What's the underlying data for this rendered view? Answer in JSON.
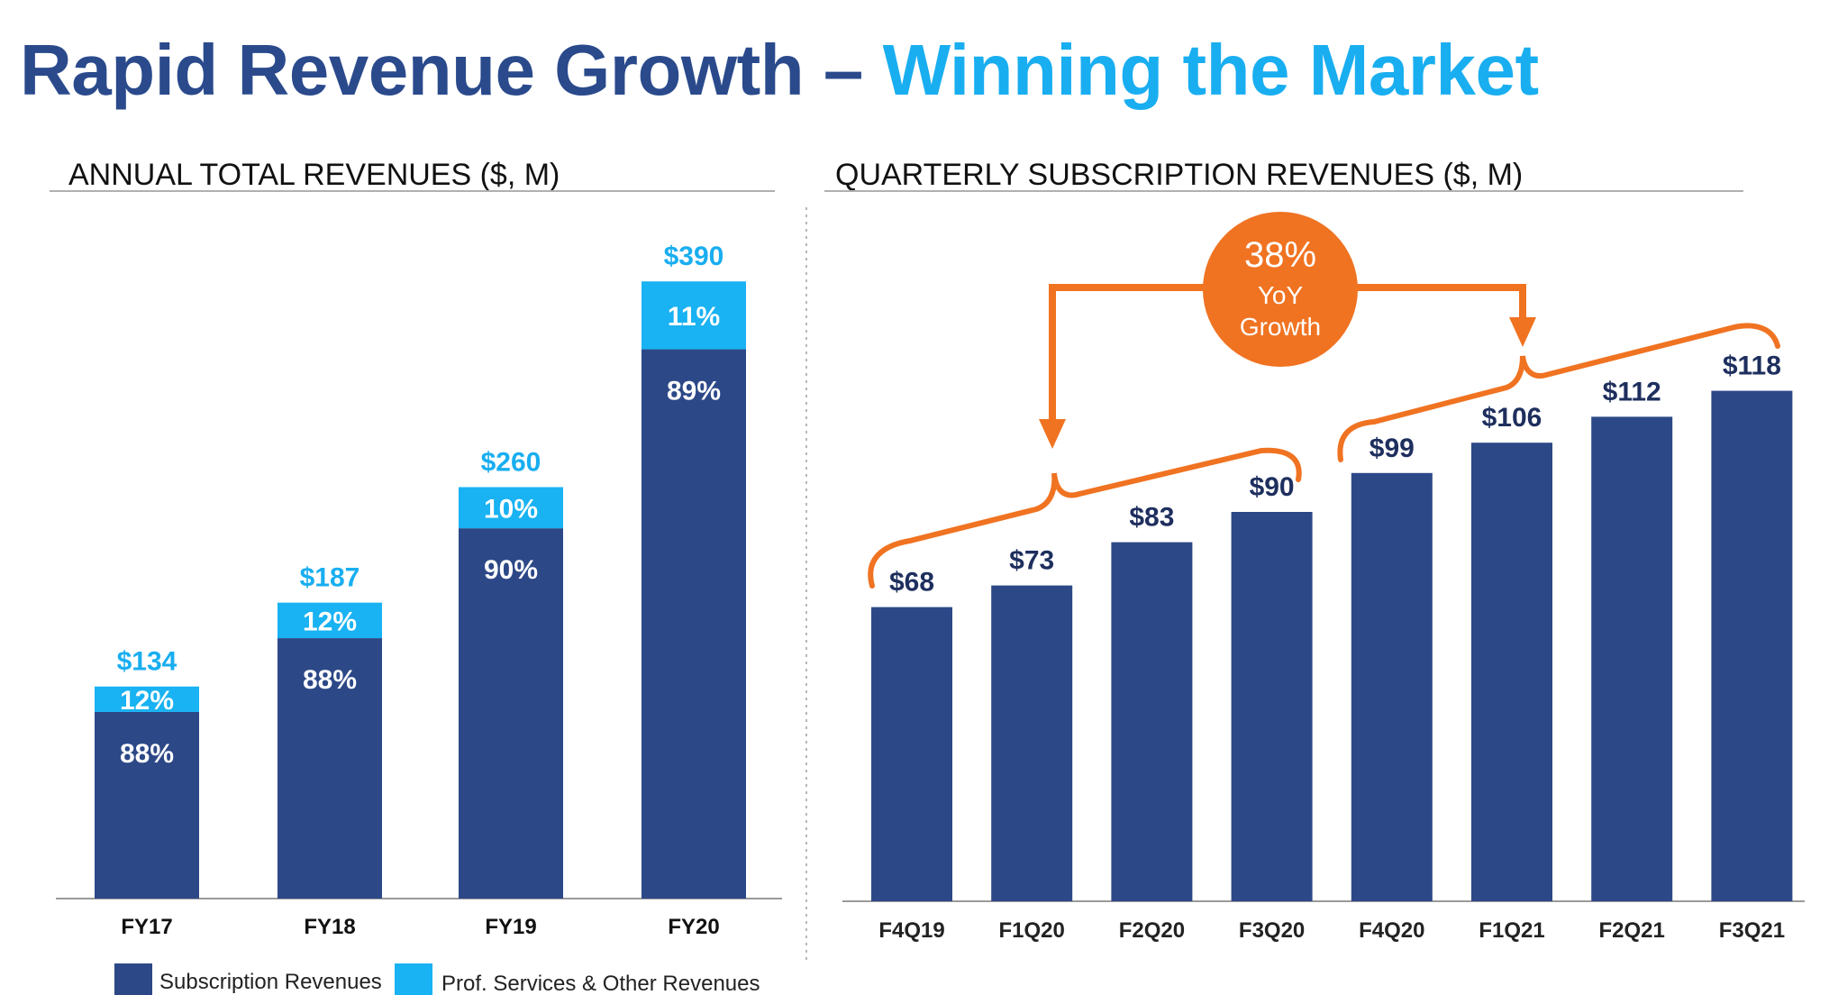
{
  "title": {
    "part1": "Rapid Revenue Growth – ",
    "part2": "Winning the Market"
  },
  "colors": {
    "title_dark": "#2a4a8c",
    "title_light": "#19aef0",
    "subscription": "#2c4887",
    "prof_services": "#19b2f2",
    "callout": "#f07322"
  },
  "chart_data": [
    {
      "type": "bar",
      "stacked": true,
      "title": "ANNUAL TOTAL REVENUES ($, M)",
      "categories": [
        "FY17",
        "FY18",
        "FY19",
        "FY20"
      ],
      "totals": [
        134,
        187,
        260,
        390
      ],
      "total_labels": [
        "$134",
        "$187",
        "$260",
        "$390"
      ],
      "series": [
        {
          "name": "Subscription Revenues",
          "share_pct": [
            88,
            88,
            90,
            89
          ],
          "labels": [
            "88%",
            "88%",
            "90%",
            "89%"
          ]
        },
        {
          "name": "Prof. Services & Other Revenues",
          "share_pct": [
            12,
            12,
            10,
            11
          ],
          "labels": [
            "12%",
            "12%",
            "10%",
            "11%"
          ]
        }
      ],
      "ylim": [
        0,
        430
      ],
      "grid": false,
      "legend": "bottom"
    },
    {
      "type": "bar",
      "title": "QUARTERLY SUBSCRIPTION REVENUES ($, M)",
      "categories": [
        "F4Q19",
        "F1Q20",
        "F2Q20",
        "F3Q20",
        "F4Q20",
        "F1Q21",
        "F2Q21",
        "F3Q21"
      ],
      "values": [
        68,
        73,
        83,
        90,
        99,
        106,
        112,
        118
      ],
      "value_labels": [
        "$68",
        "$73",
        "$83",
        "$90",
        "$99",
        "$106",
        "$112",
        "$118"
      ],
      "ylim": [
        0,
        170
      ],
      "grid": false,
      "annotation": {
        "pct": "38%",
        "line1": "YoY",
        "line2": "Growth",
        "from_group": [
          "F4Q19",
          "F1Q20",
          "F2Q20",
          "F3Q20"
        ],
        "to_group": [
          "F4Q20",
          "F1Q21",
          "F2Q21",
          "F3Q21"
        ]
      }
    }
  ]
}
